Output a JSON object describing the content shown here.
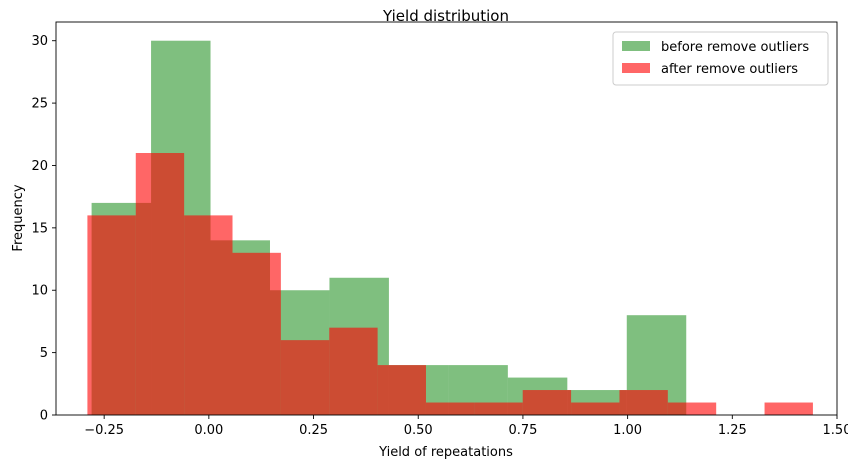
{
  "chart_data": {
    "type": "bar",
    "title": "Yield distribution",
    "xlabel": "Yield of repeatations",
    "ylabel": "Frequency",
    "xlim": [
      -0.365,
      1.5
    ],
    "ylim": [
      0,
      31.5
    ],
    "xticks": [
      -0.25,
      0.0,
      0.25,
      0.5,
      0.75,
      1.0,
      1.25,
      1.5
    ],
    "xtick_labels": [
      "−0.25",
      "0.00",
      "0.25",
      "0.50",
      "0.75",
      "1.00",
      "1.25",
      "1.50"
    ],
    "yticks": [
      0,
      5,
      10,
      15,
      20,
      25,
      30
    ],
    "ytick_labels": [
      "0",
      "5",
      "10",
      "15",
      "20",
      "25",
      "30"
    ],
    "grid": false,
    "legend_position": "top-right",
    "series": [
      {
        "name": "before remove outliers",
        "color": "#008000",
        "opacity": 0.5,
        "bin_edges": [
          -0.28,
          -0.138,
          0.004,
          0.146,
          0.288,
          0.43,
          0.572,
          0.714,
          0.856,
          0.998,
          1.14
        ],
        "values": [
          17,
          30,
          14,
          10,
          11,
          4,
          4,
          3,
          2,
          8
        ]
      },
      {
        "name": "after remove outliers",
        "color": "#ff0000",
        "opacity": 0.6,
        "bin_edges": [
          -0.29,
          -0.1745,
          -0.059,
          0.0565,
          0.172,
          0.2875,
          0.403,
          0.5185,
          0.634,
          0.7495,
          0.865,
          0.9805,
          1.096,
          1.2115,
          1.327,
          1.4425
        ],
        "values": [
          16,
          21,
          16,
          13,
          6,
          7,
          4,
          1,
          1,
          2,
          1,
          2,
          1,
          0,
          1
        ]
      }
    ]
  }
}
